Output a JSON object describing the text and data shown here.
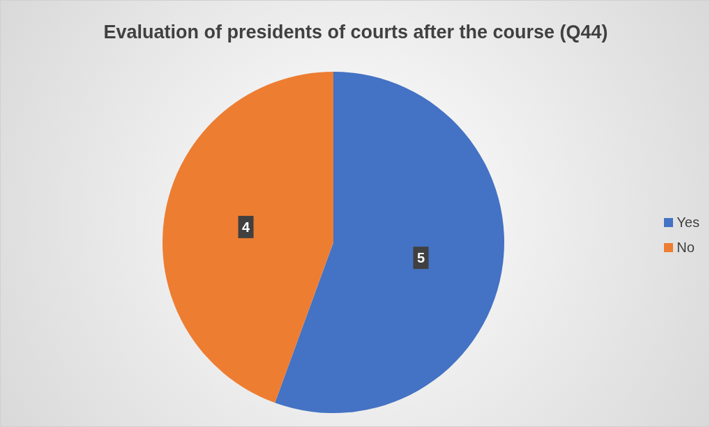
{
  "chart_data": {
    "type": "pie",
    "title": "Evaluation of presidents of courts after the course (Q44)",
    "categories": [
      "Yes",
      "No"
    ],
    "values": [
      5,
      4
    ],
    "colors": [
      "#4472c4",
      "#ed7d31"
    ],
    "data_labels": true,
    "legend": "right"
  }
}
